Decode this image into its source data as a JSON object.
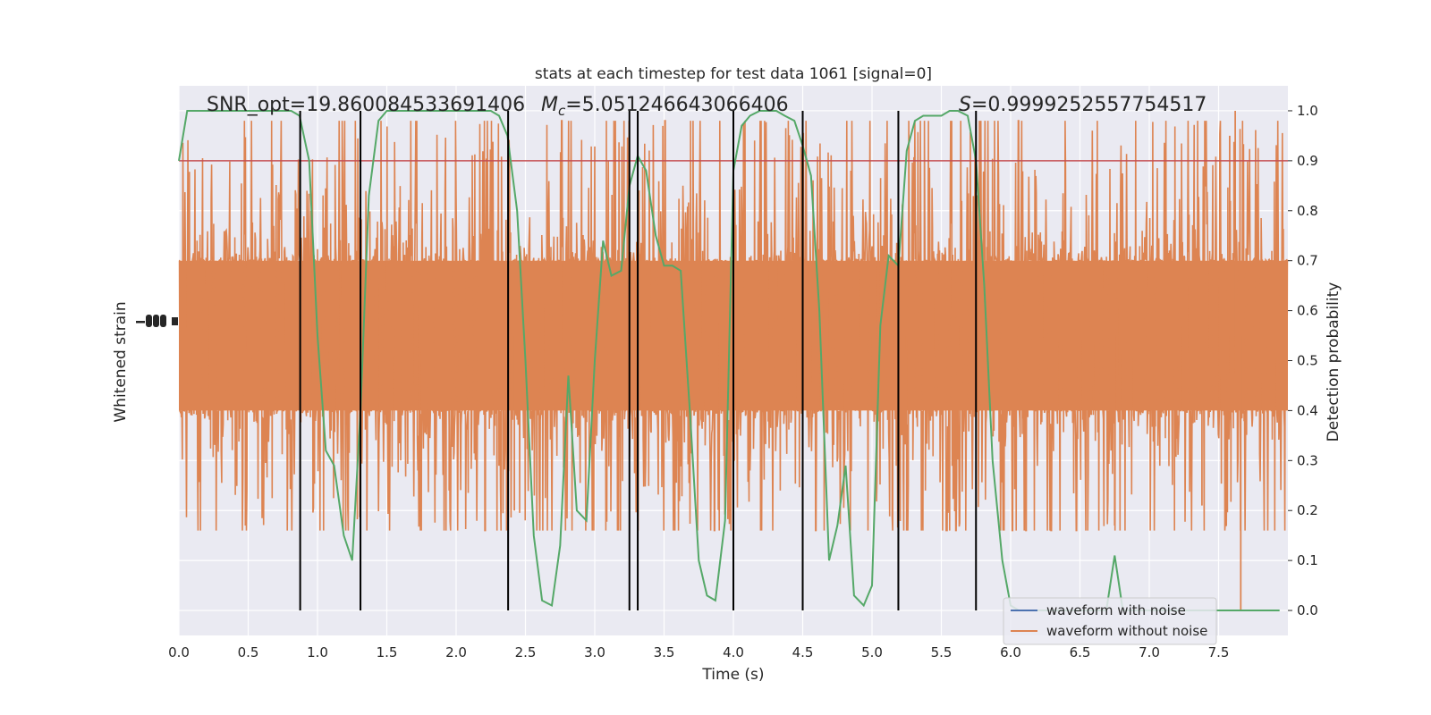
{
  "chart_data": {
    "type": "line",
    "title": "stats at each timestep for test data 1061 [signal=0]",
    "xlabel": "Time (s)",
    "ylabel_left": "Whitened strain",
    "ylabel_right": "Detection probability",
    "xlim": [
      0.0,
      8.0
    ],
    "ylim_right": [
      -0.05,
      1.05
    ],
    "x_ticks": [
      "0.0",
      "0.5",
      "1.0",
      "1.5",
      "2.0",
      "2.5",
      "3.0",
      "3.5",
      "4.0",
      "4.5",
      "5.0",
      "5.5",
      "6.0",
      "6.5",
      "7.0",
      "7.5"
    ],
    "y_ticks_right": [
      "0.0",
      "0.1",
      "0.2",
      "0.3",
      "0.4",
      "0.5",
      "0.6",
      "0.7",
      "0.8",
      "0.9",
      "1.0"
    ],
    "annotations": {
      "snr": "SNR_opt=19.860084533691406",
      "mc_label": "M",
      "mc_sub": "c",
      "mc_value": "=5.051246643066406",
      "s_label": "S",
      "s_value": "=0.9999252557754517"
    },
    "threshold": 0.9,
    "detection_boundaries": [
      0.875,
      1.31,
      2.375,
      3.25,
      3.31,
      4.0,
      4.5,
      5.19,
      5.75
    ],
    "detection_probability": {
      "x": [
        0.0,
        0.06,
        0.12,
        0.18,
        0.25,
        0.31,
        0.37,
        0.44,
        0.5,
        0.56,
        0.62,
        0.69,
        0.75,
        0.81,
        0.87,
        0.94,
        1.0,
        1.06,
        1.12,
        1.19,
        1.25,
        1.31,
        1.37,
        1.44,
        1.5,
        1.56,
        1.62,
        1.69,
        1.75,
        1.81,
        1.87,
        1.94,
        2.0,
        2.06,
        2.12,
        2.19,
        2.25,
        2.31,
        2.37,
        2.44,
        2.5,
        2.56,
        2.62,
        2.69,
        2.75,
        2.81,
        2.87,
        2.94,
        3.0,
        3.06,
        3.12,
        3.19,
        3.25,
        3.31,
        3.37,
        3.44,
        3.5,
        3.56,
        3.62,
        3.69,
        3.75,
        3.81,
        3.87,
        3.94,
        4.0,
        4.06,
        4.12,
        4.19,
        4.25,
        4.31,
        4.37,
        4.44,
        4.5,
        4.56,
        4.62,
        4.69,
        4.75,
        4.81,
        4.87,
        4.94,
        5.0,
        5.06,
        5.12,
        5.19,
        5.25,
        5.31,
        5.37,
        5.44,
        5.5,
        5.56,
        5.62,
        5.69,
        5.75,
        5.81,
        5.87,
        5.94,
        6.0,
        6.06,
        6.12,
        6.19,
        6.25,
        6.31,
        6.37,
        6.44,
        6.5,
        6.56,
        6.62,
        6.69,
        6.75,
        6.81,
        6.87,
        6.94,
        7.0,
        7.06,
        7.12,
        7.19,
        7.25,
        7.31,
        7.37,
        7.44,
        7.5,
        7.56,
        7.62,
        7.69,
        7.75,
        7.81,
        7.87,
        7.94
      ],
      "y": [
        0.9,
        1.0,
        1.0,
        1.0,
        1.0,
        1.0,
        1.0,
        1.0,
        1.0,
        1.0,
        1.0,
        1.0,
        1.0,
        1.0,
        0.99,
        0.9,
        0.55,
        0.32,
        0.29,
        0.15,
        0.1,
        0.4,
        0.83,
        0.98,
        1.0,
        1.0,
        1.0,
        1.0,
        1.0,
        1.0,
        1.0,
        1.0,
        1.0,
        1.0,
        1.0,
        1.0,
        1.0,
        0.99,
        0.95,
        0.8,
        0.5,
        0.15,
        0.02,
        0.01,
        0.13,
        0.47,
        0.2,
        0.18,
        0.5,
        0.74,
        0.67,
        0.68,
        0.85,
        0.91,
        0.88,
        0.75,
        0.69,
        0.69,
        0.68,
        0.38,
        0.1,
        0.03,
        0.02,
        0.18,
        0.88,
        0.97,
        0.99,
        1.0,
        1.0,
        1.0,
        0.99,
        0.98,
        0.93,
        0.87,
        0.6,
        0.1,
        0.17,
        0.29,
        0.03,
        0.01,
        0.05,
        0.57,
        0.71,
        0.69,
        0.92,
        0.98,
        0.99,
        0.99,
        0.99,
        1.0,
        1.0,
        0.99,
        0.9,
        0.65,
        0.3,
        0.1,
        0.01,
        0.0,
        0.0,
        0.0,
        0.0,
        0.0,
        0.0,
        0.0,
        0.0,
        0.0,
        0.0,
        0.0,
        0.11,
        0.0,
        0.0,
        0.0,
        0.0,
        0.0,
        0.0,
        0.0,
        0.0,
        0.0,
        0.0,
        0.0,
        0.0,
        0.0,
        0.0,
        0.0,
        0.0,
        0.0,
        0.0,
        0.0
      ]
    },
    "whitened_strain": {
      "description_free": true,
      "center_prob_units": 0.55,
      "core_halfwidth": 0.15,
      "spike_max_top": 1.0,
      "spike_max_bottom": 0.0
    },
    "legend": [
      "waveform with noise",
      "waveform without noise"
    ],
    "legend_placement": "lower-right",
    "colors": {
      "background": "#eaeaf2",
      "grid": "#ffffff",
      "strain": "#dd8452",
      "noise_legend": "#4c72b0",
      "probability": "#55a868",
      "threshold": "#c44e52",
      "boundary": "#000000"
    },
    "grid": true
  }
}
